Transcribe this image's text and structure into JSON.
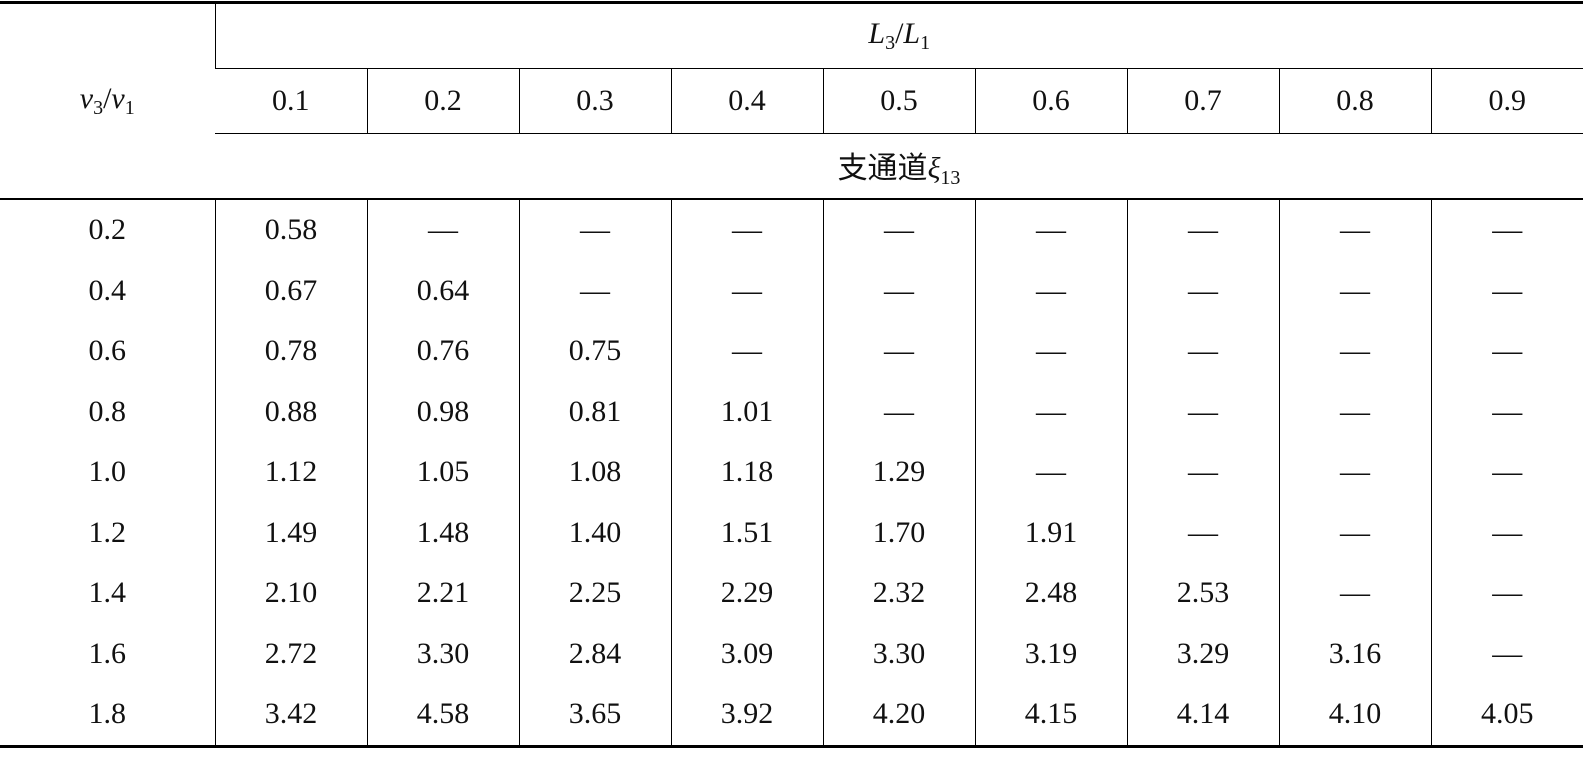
{
  "table": {
    "row_label": {
      "var1": "v",
      "sub1": "3",
      "sep": "/",
      "var2": "v",
      "sub2": "1"
    },
    "group_label": {
      "var1": "L",
      "sub1": "3",
      "sep": "/",
      "var2": "L",
      "sub2": "1"
    },
    "columns": [
      "0.1",
      "0.2",
      "0.3",
      "0.4",
      "0.5",
      "0.6",
      "0.7",
      "0.8",
      "0.9"
    ],
    "sub_label": {
      "text": "支通道",
      "var": "ξ",
      "sub": "13"
    },
    "rows": [
      [
        "0.2",
        "0.58",
        "—",
        "—",
        "—",
        "—",
        "—",
        "—",
        "—",
        "—"
      ],
      [
        "0.4",
        "0.67",
        "0.64",
        "—",
        "—",
        "—",
        "—",
        "—",
        "—",
        "—"
      ],
      [
        "0.6",
        "0.78",
        "0.76",
        "0.75",
        "—",
        "—",
        "—",
        "—",
        "—",
        "—"
      ],
      [
        "0.8",
        "0.88",
        "0.98",
        "0.81",
        "1.01",
        "—",
        "—",
        "—",
        "—",
        "—"
      ],
      [
        "1.0",
        "1.12",
        "1.05",
        "1.08",
        "1.18",
        "1.29",
        "—",
        "—",
        "—",
        "—"
      ],
      [
        "1.2",
        "1.49",
        "1.48",
        "1.40",
        "1.51",
        "1.70",
        "1.91",
        "—",
        "—",
        "—"
      ],
      [
        "1.4",
        "2.10",
        "2.21",
        "2.25",
        "2.29",
        "2.32",
        "2.48",
        "2.53",
        "—",
        "—"
      ],
      [
        "1.6",
        "2.72",
        "3.30",
        "2.84",
        "3.09",
        "3.30",
        "3.19",
        "3.29",
        "3.16",
        "—"
      ],
      [
        "1.8",
        "3.42",
        "4.58",
        "3.65",
        "3.92",
        "4.20",
        "4.15",
        "4.14",
        "4.10",
        "4.05"
      ]
    ]
  }
}
